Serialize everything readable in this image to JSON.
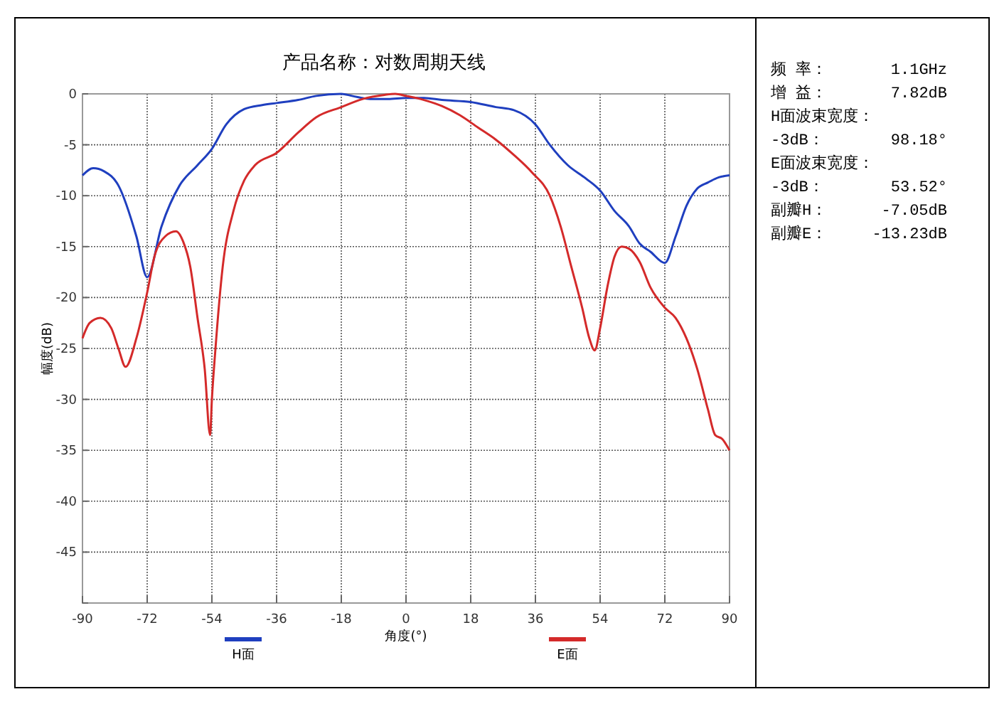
{
  "chart_data": {
    "type": "line",
    "title": "产品名称：对数周期天线",
    "xlabel": "角度(°)",
    "ylabel": "幅度(dB)",
    "xlim": [
      -90,
      90
    ],
    "xticks": [
      -90,
      -72,
      -54,
      -36,
      -18,
      0,
      18,
      36,
      54,
      72,
      90
    ],
    "ylim": [
      -50,
      0
    ],
    "yticks": [
      0,
      -5,
      -10,
      -15,
      -20,
      -25,
      -30,
      -35,
      -40,
      -45,
      {
        "value": -50,
        "label": null
      }
    ],
    "grid": true,
    "legend": "bottom",
    "line_style": "solid",
    "annotations": [
      "频    率：",
      "1.1GHz",
      "增    益：",
      "7.82dB",
      "H面波束宽度：",
      "-3dB：",
      "98.18°",
      "E面波束宽度：",
      "-3dB：",
      "53.52°",
      "副瓣H：",
      "-7.05dB",
      "副瓣E：",
      "-13.23dB"
    ],
    "series": [
      {
        "name": "H面",
        "color": "#1f3fbf",
        "x": [
          -90,
          -87,
          -84,
          -80,
          -75,
          -72,
          -68,
          -63,
          -58,
          -54,
          -50,
          -45,
          -40,
          -36,
          -30,
          -25,
          -18,
          -15,
          -10,
          -5,
          0,
          5,
          10,
          18,
          25,
          30,
          36,
          40,
          45,
          50,
          54,
          58,
          62,
          65,
          68,
          72,
          75,
          78,
          81,
          84,
          87,
          90
        ],
        "values": [
          -8,
          -7.3,
          -7.6,
          -9,
          -14,
          -18,
          -13,
          -9,
          -7,
          -5.4,
          -3,
          -1.5,
          -1.1,
          -0.9,
          -0.6,
          -0.2,
          0,
          -0.2,
          -0.5,
          -0.5,
          -0.4,
          -0.4,
          -0.6,
          -0.8,
          -1.3,
          -1.6,
          -3,
          -5,
          -7,
          -8.3,
          -9.5,
          -11.5,
          -13,
          -14.7,
          -15.5,
          -16.6,
          -14,
          -11,
          -9.3,
          -8.7,
          -8.2,
          -8
        ]
      },
      {
        "name": "E面",
        "color": "#d42a2a",
        "x": [
          -90,
          -88,
          -85,
          -82,
          -80,
          -78,
          -75,
          -72,
          -70,
          -67,
          -64,
          -62,
          -60,
          -58,
          -56,
          -54.5,
          -54,
          -53,
          -51,
          -48,
          -45,
          -42,
          -36,
          -30,
          -25,
          -18,
          -12,
          -6,
          -3,
          0,
          5,
          10,
          15,
          20,
          25,
          30,
          35,
          40,
          43,
          46,
          49,
          51,
          52.5,
          54,
          56,
          58,
          60,
          62,
          65,
          68,
          72,
          75,
          78,
          81,
          84,
          86,
          88,
          90
        ],
        "values": [
          -24,
          -22.5,
          -22,
          -23,
          -25,
          -26.8,
          -24,
          -19.5,
          -16,
          -14,
          -13.5,
          -14.5,
          -17,
          -22,
          -27,
          -33.5,
          -30,
          -25,
          -17,
          -11.5,
          -8.5,
          -7,
          -5.8,
          -3.8,
          -2.3,
          -1.3,
          -0.5,
          -0.1,
          0,
          -0.2,
          -0.6,
          -1.2,
          -2.1,
          -3.3,
          -4.5,
          -6,
          -7.7,
          -10,
          -13,
          -17,
          -21,
          -24,
          -25.2,
          -23,
          -19,
          -16,
          -15,
          -15.2,
          -16.5,
          -19,
          -21,
          -22,
          -24,
          -27,
          -31,
          -33.5,
          -33.9,
          -35
        ]
      }
    ]
  }
}
